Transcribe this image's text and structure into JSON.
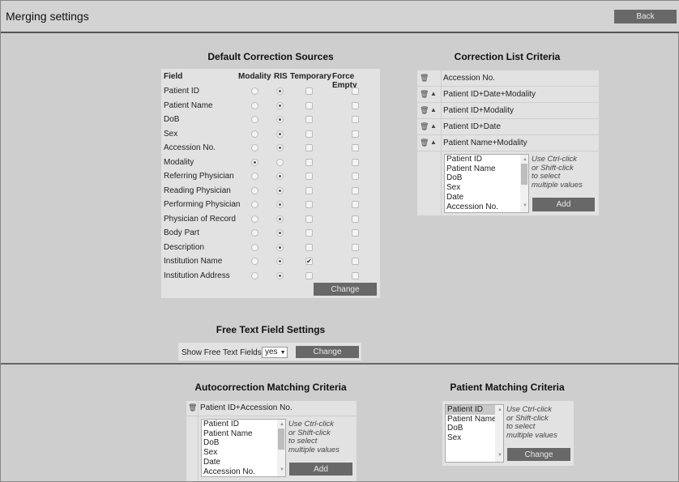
{
  "header": {
    "title": "Merging settings",
    "back_label": "Back"
  },
  "default_sources": {
    "title": "Default Correction Sources",
    "columns": [
      "Field",
      "Modality",
      "RIS",
      "Temporary",
      "Force Empty"
    ],
    "rows": [
      {
        "field": "Patient ID",
        "source": "RIS",
        "temporary": false,
        "force_empty": false
      },
      {
        "field": "Patient Name",
        "source": "RIS",
        "temporary": false,
        "force_empty": false
      },
      {
        "field": "DoB",
        "source": "RIS",
        "temporary": false,
        "force_empty": false
      },
      {
        "field": "Sex",
        "source": "RIS",
        "temporary": false,
        "force_empty": false
      },
      {
        "field": "Accession No.",
        "source": "RIS",
        "temporary": false,
        "force_empty": false
      },
      {
        "field": "Modality",
        "source": "Modality",
        "temporary": false,
        "force_empty": false
      },
      {
        "field": "Referring Physician",
        "source": "RIS",
        "temporary": false,
        "force_empty": false
      },
      {
        "field": "Reading Physician",
        "source": "RIS",
        "temporary": false,
        "force_empty": false
      },
      {
        "field": "Performing Physician",
        "source": "RIS",
        "temporary": false,
        "force_empty": false
      },
      {
        "field": "Physician of Record",
        "source": "RIS",
        "temporary": false,
        "force_empty": false
      },
      {
        "field": "Body Part",
        "source": "RIS",
        "temporary": false,
        "force_empty": false
      },
      {
        "field": "Description",
        "source": "RIS",
        "temporary": false,
        "force_empty": false
      },
      {
        "field": "Institution Name",
        "source": "RIS",
        "temporary": true,
        "force_empty": false
      },
      {
        "field": "Institution Address",
        "source": "RIS",
        "temporary": false,
        "force_empty": false
      }
    ],
    "change_label": "Change"
  },
  "correction_list": {
    "title": "Correction List Criteria",
    "items": [
      {
        "label": "Accession No.",
        "movable": false
      },
      {
        "label": "Patient ID+Date+Modality",
        "movable": true
      },
      {
        "label": "Patient ID+Modality",
        "movable": true
      },
      {
        "label": "Patient ID+Date",
        "movable": true
      },
      {
        "label": "Patient Name+Modality",
        "movable": true
      }
    ],
    "options": [
      "Patient ID",
      "Patient Name",
      "DoB",
      "Sex",
      "Date",
      "Accession No."
    ],
    "hint": [
      "Use Ctrl-click",
      "or Shift-click",
      "to select",
      "multiple values"
    ],
    "add_label": "Add"
  },
  "free_text": {
    "title": "Free Text Field Settings",
    "label": "Show Free Text Fields:",
    "value": "yes",
    "change_label": "Change"
  },
  "autocorrection": {
    "title": "Autocorrection Matching Criteria",
    "items": [
      {
        "label": "Patient ID+Accession No."
      }
    ],
    "options": [
      "Patient ID",
      "Patient Name",
      "DoB",
      "Sex",
      "Date",
      "Accession No."
    ],
    "hint": [
      "Use Ctrl-click",
      "or Shift-click",
      "to select",
      "multiple values"
    ],
    "add_label": "Add"
  },
  "patient_matching": {
    "title": "Patient Matching Criteria",
    "options": [
      "Patient ID",
      "Patient Name",
      "DoB",
      "Sex"
    ],
    "selected": "Patient ID",
    "hint": [
      "Use Ctrl-click",
      "or Shift-click",
      "to select",
      "multiple values"
    ],
    "change_label": "Change"
  }
}
